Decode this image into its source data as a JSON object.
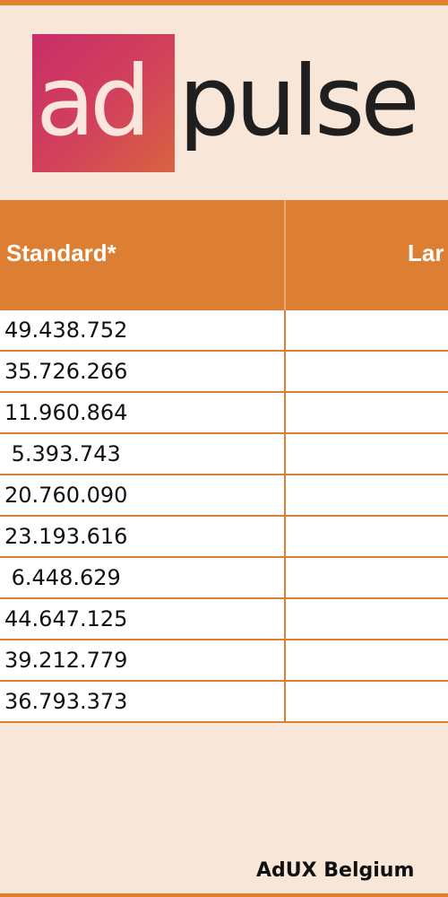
{
  "logo": {
    "part1": "ad",
    "part2": "pulse"
  },
  "table": {
    "headers": [
      "Standard*",
      "Lar"
    ],
    "rows": [
      "49.438.752",
      "35.726.266",
      "11.960.864",
      " 5.393.743",
      "20.760.090",
      "23.193.616",
      " 6.448.629",
      "44.647.125",
      "39.212.779",
      "36.793.373"
    ]
  },
  "footer": {
    "text": "AdUX Belgium"
  },
  "colors": {
    "accent": "#dc7f32",
    "background": "#f8e6d8",
    "logo_gradient_start": "#c92d69",
    "logo_gradient_end": "#d96440"
  }
}
